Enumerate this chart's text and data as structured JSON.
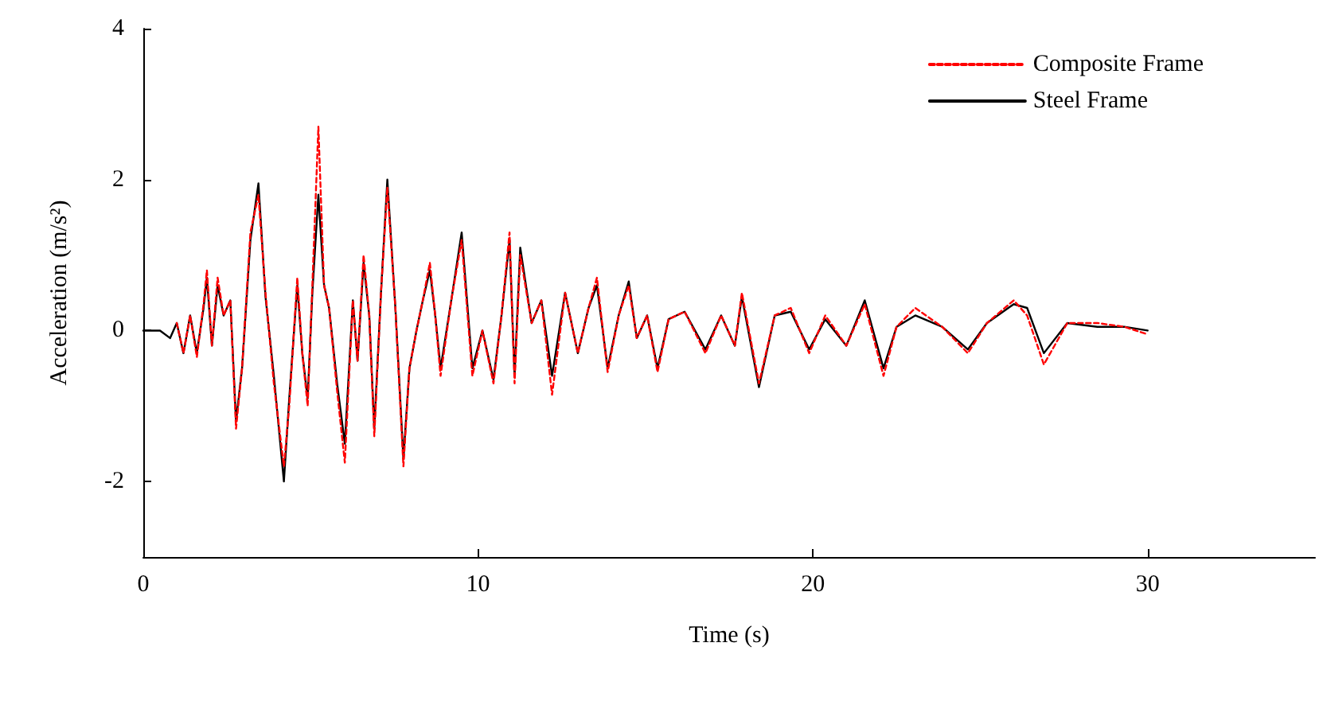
{
  "chart_data": {
    "type": "line",
    "xlabel": "Time (s)",
    "ylabel": "Acceleration (m/s²)",
    "xlim": [
      0,
      35
    ],
    "xticks": [
      0,
      10,
      20,
      30
    ],
    "ylim": [
      -3,
      4
    ],
    "yticks": [
      -2,
      0,
      2,
      4
    ],
    "grid": false,
    "legend": "top right",
    "marker": "none",
    "x": [
      0,
      0.5,
      0.8,
      1.0,
      1.2,
      1.4,
      1.6,
      1.8,
      1.9,
      2.05,
      2.22,
      2.4,
      2.6,
      2.77,
      2.95,
      3.2,
      3.44,
      3.65,
      3.9,
      4.2,
      4.36,
      4.6,
      4.75,
      4.91,
      5.05,
      5.23,
      5.4,
      5.55,
      5.79,
      6.02,
      6.26,
      6.4,
      6.58,
      6.75,
      6.9,
      7.1,
      7.29,
      7.53,
      7.77,
      7.95,
      8.16,
      8.35,
      8.56,
      8.72,
      8.88,
      9.2,
      9.51,
      9.83,
      10.13,
      10.46,
      10.7,
      10.94,
      11.09,
      11.26,
      11.6,
      11.89,
      12.21,
      12.6,
      12.98,
      13.3,
      13.55,
      13.87,
      14.2,
      14.5,
      14.74,
      15.05,
      15.36,
      15.69,
      16.17,
      16.79,
      17.26,
      17.67,
      17.88,
      18.39,
      18.86,
      19.34,
      19.89,
      20.37,
      21.0,
      21.55,
      22.11,
      22.5,
      23.06,
      23.86,
      24.63,
      25.2,
      26.0,
      26.4,
      26.9,
      27.6,
      28.5,
      29.3,
      30.0
    ],
    "series": [
      {
        "name": "Composite Frame",
        "color": "#ff0000",
        "line_style": "dashed",
        "values": [
          null,
          null,
          null,
          0.1,
          -0.3,
          0.2,
          -0.35,
          0.35,
          0.8,
          -0.2,
          0.7,
          0.2,
          0.4,
          -1.3,
          -0.5,
          1.3,
          1.8,
          0.5,
          -0.7,
          -1.8,
          -1.0,
          0.7,
          -0.3,
          -1.0,
          0.6,
          2.7,
          0.6,
          0.3,
          -0.8,
          -1.75,
          0.4,
          -0.4,
          1.0,
          0.2,
          -1.4,
          0.5,
          1.9,
          0.3,
          -1.8,
          -0.5,
          0,
          0.4,
          0.9,
          0.2,
          -0.6,
          0.4,
          1.2,
          -0.6,
          0,
          -0.7,
          0.2,
          1.3,
          -0.7,
          1.0,
          0.1,
          0.4,
          -0.85,
          0.5,
          -0.3,
          0.3,
          0.7,
          -0.55,
          0.2,
          0.6,
          -0.1,
          0.2,
          -0.55,
          0.15,
          0.25,
          -0.3,
          0.2,
          -0.2,
          0.5,
          -0.7,
          0.2,
          0.3,
          -0.3,
          0.2,
          -0.2,
          0.35,
          -0.6,
          0.05,
          0.3,
          0.05,
          -0.3,
          0.1,
          0.4,
          0.2,
          -0.45,
          0.1,
          0.1,
          0.05,
          -0.05
        ]
      },
      {
        "name": "Steel Frame",
        "color": "#000000",
        "line_style": "solid",
        "values": [
          0,
          0,
          -0.1,
          0.1,
          -0.3,
          0.2,
          -0.3,
          0.3,
          0.7,
          -0.2,
          0.6,
          0.2,
          0.4,
          -1.2,
          -0.5,
          1.2,
          1.95,
          0.45,
          -0.6,
          -2.0,
          -0.9,
          0.6,
          -0.3,
          -0.9,
          0.5,
          1.8,
          0.6,
          0.3,
          -0.7,
          -1.5,
          0.4,
          -0.4,
          0.9,
          0.2,
          -1.3,
          0.5,
          2.0,
          0.3,
          -1.7,
          -0.5,
          0,
          0.4,
          0.8,
          0.2,
          -0.5,
          0.4,
          1.3,
          -0.5,
          0,
          -0.65,
          0.2,
          1.2,
          -0.6,
          1.1,
          0.1,
          0.4,
          -0.6,
          0.5,
          -0.3,
          0.3,
          0.6,
          -0.5,
          0.2,
          0.65,
          -0.1,
          0.2,
          -0.5,
          0.15,
          0.25,
          -0.25,
          0.2,
          -0.2,
          0.45,
          -0.75,
          0.2,
          0.25,
          -0.25,
          0.15,
          -0.2,
          0.4,
          -0.5,
          0.05,
          0.2,
          0.05,
          -0.25,
          0.1,
          0.35,
          0.3,
          -0.3,
          0.1,
          0.05,
          0.05,
          0
        ]
      }
    ]
  }
}
